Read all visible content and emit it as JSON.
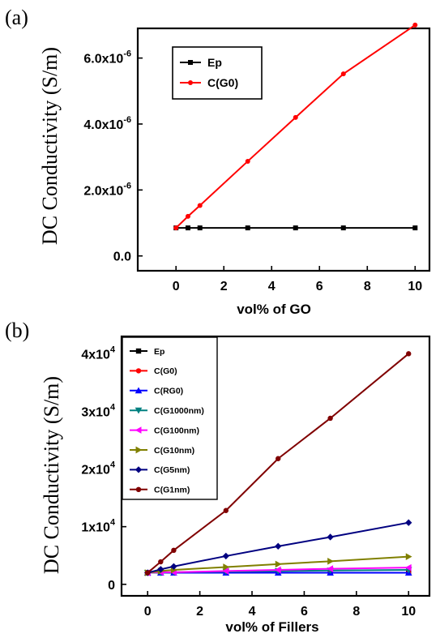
{
  "chart_data": [
    {
      "type": "line",
      "panel_label": "(a)",
      "xlabel": "vol% of GO",
      "ylabel": "DC Conductivity (S/m)",
      "xlim": [
        -1.6,
        10.6
      ],
      "ylim": [
        -0.45,
        6.9
      ],
      "x_ticks": [
        0,
        2,
        4,
        6,
        8,
        10
      ],
      "x_tick_labels": [
        "0",
        "2",
        "4",
        "6",
        "8",
        "10"
      ],
      "y_ticks": [
        0,
        2,
        4,
        6
      ],
      "y_tick_labels": [
        "0.0",
        "2.0x10",
        "4.0x10",
        "6.0x10"
      ],
      "y_tick_exponents": [
        "",
        "-6",
        "-6",
        "-6"
      ],
      "legend_position": "top-left",
      "series": [
        {
          "name": "Ep",
          "color": "#000000",
          "marker": "square",
          "x": [
            0,
            0.5,
            1,
            3,
            5,
            7,
            10
          ],
          "y": [
            0.85,
            0.85,
            0.85,
            0.85,
            0.85,
            0.85,
            0.85
          ]
        },
        {
          "name": "C(G0)",
          "color": "#ff0000",
          "marker": "circle",
          "x": [
            0,
            0.5,
            1,
            3,
            5,
            7,
            10
          ],
          "y": [
            0.85,
            1.2,
            1.53,
            2.87,
            4.2,
            5.52,
            7.0
          ]
        }
      ]
    },
    {
      "type": "line",
      "panel_label": "(b)",
      "xlabel": "vol% of Fillers",
      "ylabel": "DC Conductivity (S/m)",
      "xlim": [
        -1.0,
        10.8
      ],
      "ylim": [
        -0.2,
        4.3
      ],
      "x_ticks": [
        0,
        2,
        4,
        6,
        8,
        10
      ],
      "x_tick_labels": [
        "0",
        "2",
        "4",
        "6",
        "8",
        "10"
      ],
      "y_ticks": [
        0,
        1,
        2,
        3,
        4
      ],
      "y_tick_labels": [
        "0",
        "1x10",
        "2x10",
        "3x10",
        "4x10"
      ],
      "y_tick_exponents": [
        "",
        "4",
        "4",
        "4",
        "4"
      ],
      "legend_position": "top-left",
      "series": [
        {
          "name": "Ep",
          "color": "#000000",
          "marker": "square",
          "x": [
            0,
            0.5,
            1,
            3,
            5,
            7,
            10
          ],
          "y": [
            0.2,
            0.2,
            0.2,
            0.2,
            0.2,
            0.2,
            0.2
          ]
        },
        {
          "name": "C(G0)",
          "color": "#ff0000",
          "marker": "circle",
          "x": [
            0,
            0.5,
            1,
            3,
            5,
            7,
            10
          ],
          "y": [
            0.2,
            0.2,
            0.2,
            0.2,
            0.2,
            0.2,
            0.2
          ]
        },
        {
          "name": "C(RG0)",
          "color": "#0000ff",
          "marker": "triangle-up",
          "x": [
            0,
            0.5,
            1,
            3,
            5,
            7,
            10
          ],
          "y": [
            0.2,
            0.2,
            0.2,
            0.2,
            0.2,
            0.2,
            0.2
          ]
        },
        {
          "name": "C(G1000nm)",
          "color": "#008080",
          "marker": "triangle-down",
          "x": [
            0,
            0.5,
            1,
            3,
            5,
            7,
            10
          ],
          "y": [
            0.2,
            0.2,
            0.21,
            0.22,
            0.23,
            0.24,
            0.25
          ]
        },
        {
          "name": "C(G100nm)",
          "color": "#ff00ff",
          "marker": "triangle-left",
          "x": [
            0,
            0.5,
            1,
            3,
            5,
            7,
            10
          ],
          "y": [
            0.2,
            0.21,
            0.21,
            0.23,
            0.25,
            0.27,
            0.29
          ]
        },
        {
          "name": "C(G10nm)",
          "color": "#808000",
          "marker": "triangle-right",
          "x": [
            0,
            0.5,
            1,
            3,
            5,
            7,
            10
          ],
          "y": [
            0.2,
            0.23,
            0.25,
            0.3,
            0.35,
            0.4,
            0.48
          ]
        },
        {
          "name": "C(G5nm)",
          "color": "#000080",
          "marker": "diamond",
          "x": [
            0,
            0.5,
            1,
            3,
            5,
            7,
            10
          ],
          "y": [
            0.2,
            0.26,
            0.31,
            0.49,
            0.66,
            0.82,
            1.07
          ]
        },
        {
          "name": "C(G1nm)",
          "color": "#800000",
          "marker": "circle",
          "x": [
            0,
            0.5,
            1,
            3,
            5,
            7,
            10
          ],
          "y": [
            0.2,
            0.39,
            0.59,
            1.28,
            2.18,
            2.88,
            4.0
          ]
        }
      ]
    }
  ]
}
